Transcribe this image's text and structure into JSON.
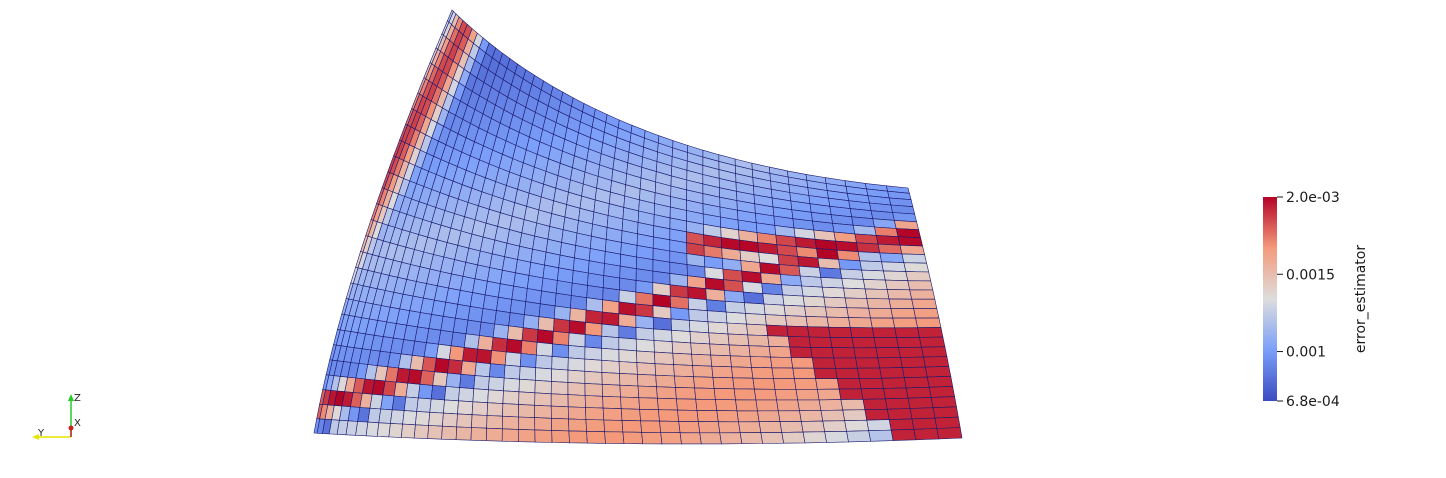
{
  "scene": {
    "title": "",
    "field": "error_estimator",
    "mesh": {
      "rows": 28,
      "cols": 40,
      "edge_color": "#1a1a6e"
    }
  },
  "colorbar": {
    "title": "error_estimator",
    "min": 0.00068,
    "max": 0.002,
    "ticks": [
      {
        "value": 0.002,
        "label": "2.0e-03"
      },
      {
        "value": 0.0015,
        "label": "0.0015"
      },
      {
        "value": 0.001,
        "label": "0.001"
      },
      {
        "value": 0.00068,
        "label": "6.8e-04"
      }
    ],
    "colors": {
      "low": "#3b4cc0",
      "mid": "#dddddd",
      "high": "#b40426"
    }
  },
  "orientation_axes": {
    "z_label": "Z",
    "y_label": "Y",
    "x_label": "X",
    "z_color": "#22cc22",
    "y_color": "#e6e600",
    "x_color": "#cc2222"
  }
}
